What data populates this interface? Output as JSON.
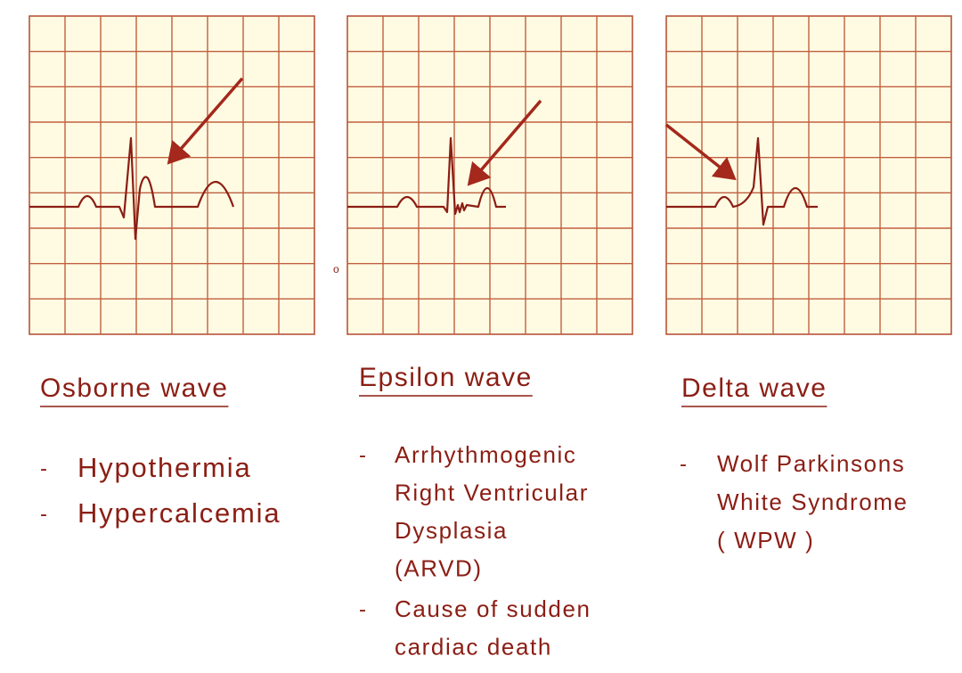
{
  "panels": [
    {
      "title": "Osborne wave",
      "items": [
        {
          "bullet": "-",
          "lines": [
            "Hypothermia"
          ]
        },
        {
          "bullet": "-",
          "lines": [
            "Hypercalcemia"
          ]
        }
      ]
    },
    {
      "title": "Epsilon wave",
      "items": [
        {
          "bullet": "-",
          "lines": [
            "Arrhythmogenic",
            "Right Ventricular",
            "Dysplasia",
            "(ARVD)"
          ]
        },
        {
          "bullet": "-",
          "lines": [
            "Cause of sudden",
            "cardiac death"
          ]
        }
      ]
    },
    {
      "title": "Delta wave",
      "items": [
        {
          "bullet": "-",
          "lines": [
            "Wolf Parkinsons",
            "White Syndrome",
            "( WPW )"
          ]
        }
      ]
    }
  ],
  "annotation": "o"
}
